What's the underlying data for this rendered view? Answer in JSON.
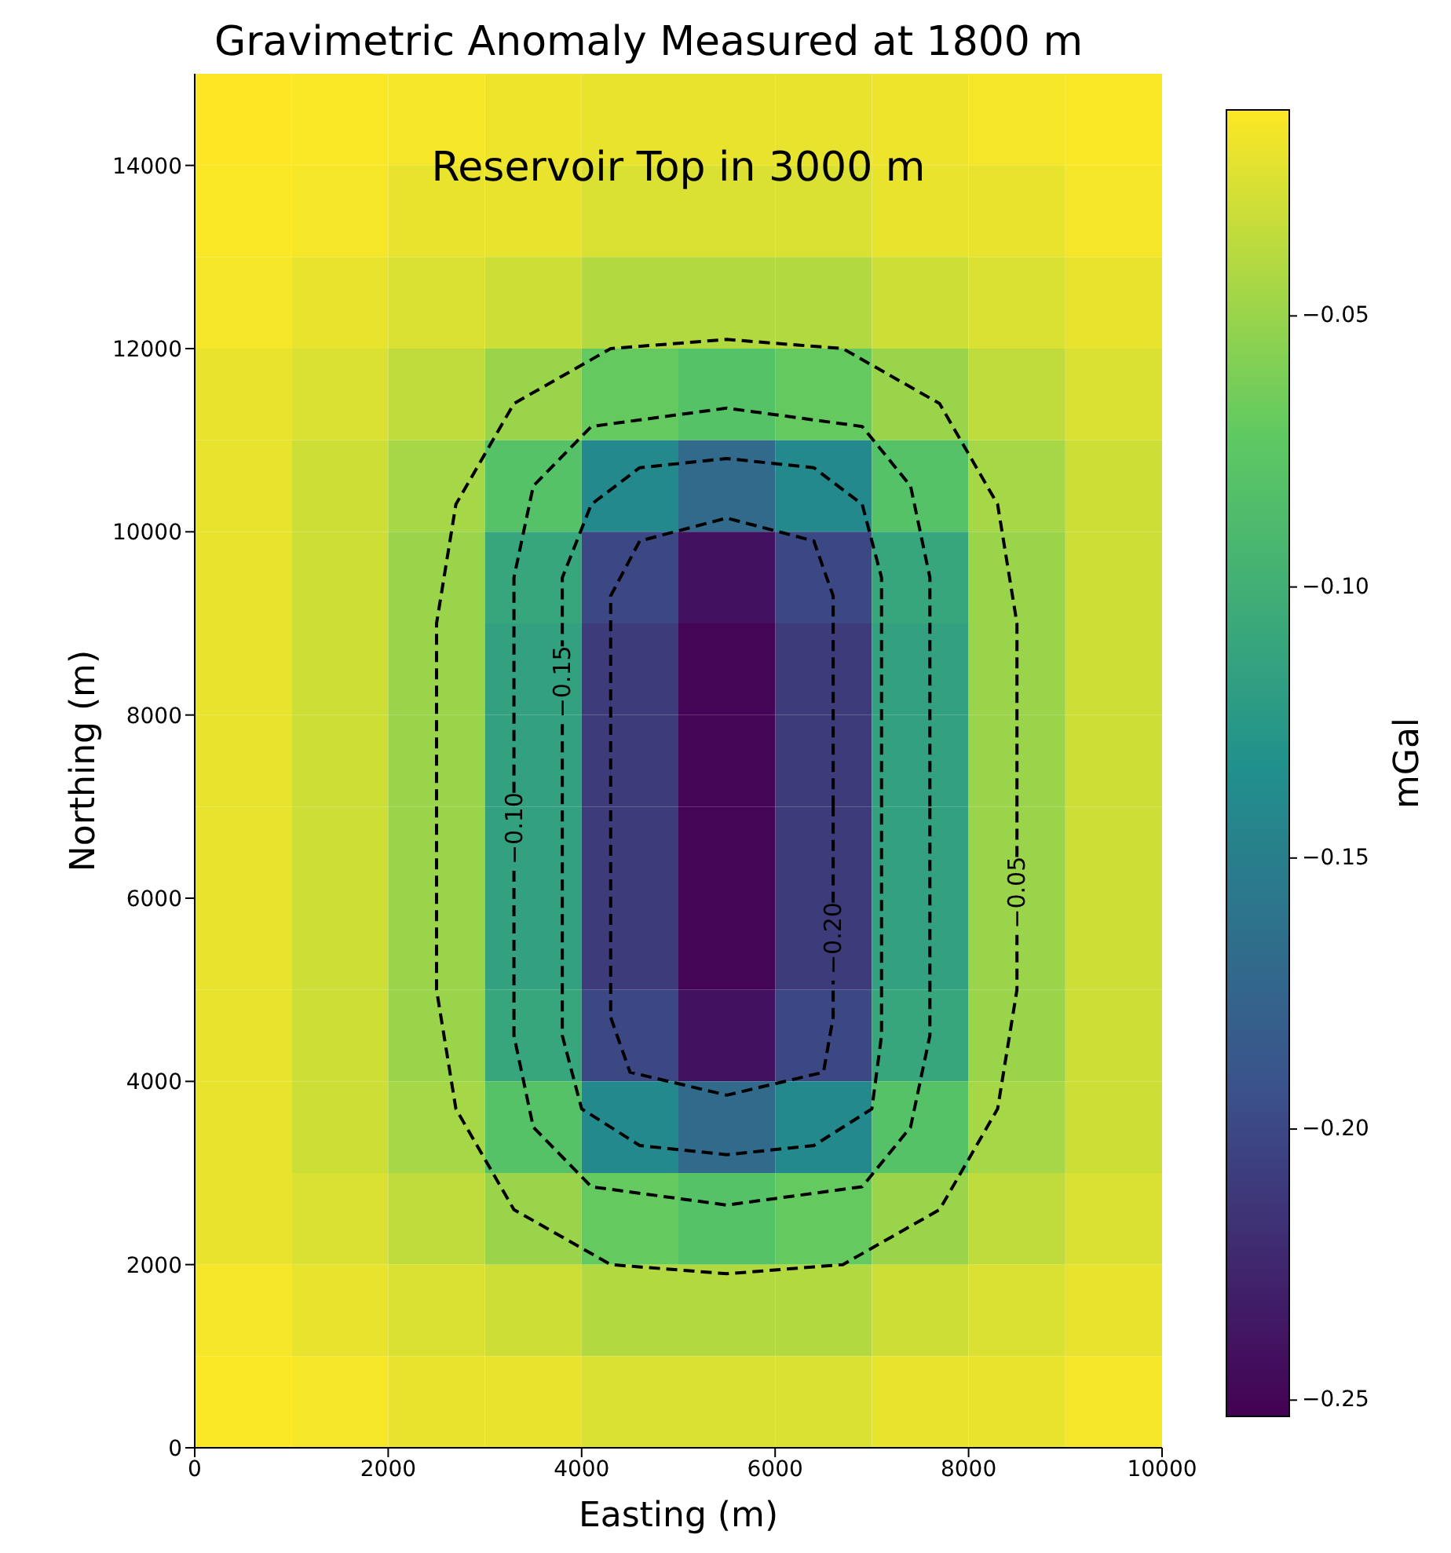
{
  "chart_data": {
    "type": "heatmap",
    "title": "Gravimetric Anomaly Measured at 1800 m",
    "xlabel": "Easting (m)",
    "ylabel": "Northing (m)",
    "clabel": "mGal",
    "annotations": [
      "Reservoir Top in 3000 m",
      {
        "text": "−0.05",
        "x": 8500,
        "y": 5600
      },
      {
        "text": "−0.10",
        "x": 3300,
        "y": 6300
      },
      {
        "text": "−0.15",
        "x": 3800,
        "y": 7900
      },
      {
        "text": "−0.20",
        "x": 6600,
        "y": 5100
      }
    ],
    "x": [
      500,
      1500,
      2500,
      3500,
      4500,
      5500,
      6500,
      7500,
      8500,
      9500
    ],
    "xlim": [
      0,
      10000
    ],
    "xticks": [
      0,
      2000,
      4000,
      6000,
      8000,
      10000
    ],
    "ylim": [
      0,
      15000
    ],
    "yticks": [
      0,
      2000,
      4000,
      6000,
      8000,
      10000,
      12000,
      14000
    ],
    "clim": [
      -0.253,
      -0.012
    ],
    "cticks": [
      {
        "value": -0.25,
        "label": "−0.25"
      },
      {
        "value": -0.2,
        "label": "−0.20"
      },
      {
        "value": -0.15,
        "label": "−0.15"
      },
      {
        "value": -0.1,
        "label": "−0.10"
      },
      {
        "value": -0.05,
        "label": "−0.05"
      }
    ],
    "cells": [
      [
        -0.012,
        -0.013,
        -0.015,
        -0.018,
        -0.02,
        -0.02,
        -0.02,
        -0.018,
        -0.015,
        -0.013
      ],
      [
        -0.013,
        -0.015,
        -0.02,
        -0.02,
        -0.025,
        -0.025,
        -0.025,
        -0.02,
        -0.02,
        -0.015
      ],
      [
        -0.015,
        -0.02,
        -0.025,
        -0.03,
        -0.04,
        -0.04,
        -0.04,
        -0.03,
        -0.025,
        -0.02
      ],
      [
        -0.02,
        -0.025,
        -0.035,
        -0.05,
        -0.07,
        -0.08,
        -0.07,
        -0.05,
        -0.035,
        -0.025
      ],
      [
        -0.02,
        -0.03,
        -0.045,
        -0.08,
        -0.14,
        -0.17,
        -0.14,
        -0.08,
        -0.045,
        -0.03
      ],
      [
        -0.02,
        -0.03,
        -0.05,
        -0.11,
        -0.2,
        -0.24,
        -0.2,
        -0.11,
        -0.05,
        -0.03
      ],
      [
        -0.02,
        -0.03,
        -0.05,
        -0.115,
        -0.21,
        -0.25,
        -0.21,
        -0.115,
        -0.05,
        -0.03
      ],
      [
        -0.02,
        -0.03,
        -0.05,
        -0.115,
        -0.21,
        -0.25,
        -0.21,
        -0.115,
        -0.05,
        -0.03
      ],
      [
        -0.02,
        -0.03,
        -0.05,
        -0.115,
        -0.21,
        -0.25,
        -0.21,
        -0.115,
        -0.05,
        -0.03
      ],
      [
        -0.02,
        -0.03,
        -0.05,
        -0.115,
        -0.21,
        -0.25,
        -0.21,
        -0.115,
        -0.05,
        -0.03
      ],
      [
        -0.02,
        -0.03,
        -0.05,
        -0.11,
        -0.2,
        -0.24,
        -0.2,
        -0.11,
        -0.05,
        -0.03
      ],
      [
        -0.02,
        -0.03,
        -0.045,
        -0.08,
        -0.14,
        -0.17,
        -0.14,
        -0.08,
        -0.045,
        -0.03
      ],
      [
        -0.02,
        -0.025,
        -0.035,
        -0.05,
        -0.07,
        -0.08,
        -0.07,
        -0.05,
        -0.035,
        -0.025
      ],
      [
        -0.015,
        -0.02,
        -0.025,
        -0.03,
        -0.04,
        -0.04,
        -0.04,
        -0.03,
        -0.025,
        -0.02
      ],
      [
        -0.013,
        -0.015,
        -0.02,
        -0.02,
        -0.025,
        -0.025,
        -0.025,
        -0.02,
        -0.02,
        -0.015
      ]
    ],
    "series": [
      {
        "type": "line",
        "color": "#000000",
        "line_style": "dashed",
        "x": [
          8500,
          8500,
          8300,
          7700,
          6700,
          5500,
          4300,
          3300,
          2700,
          2500,
          2500,
          2700,
          3300,
          4300,
          5500,
          6700,
          7700,
          8300,
          8500,
          8500,
          null,
          8500,
          8500
        ],
        "values": [
          7000,
          9000,
          10300,
          11400,
          12000,
          12100,
          12000,
          11400,
          10300,
          9000,
          5000,
          3700,
          2600,
          2000,
          1900,
          2000,
          2600,
          3700,
          5000,
          5600,
          null,
          6450,
          7000
        ]
      },
      {
        "type": "line",
        "color": "#000000",
        "line_style": "dashed",
        "x": [
          7600,
          7600,
          7400,
          6900,
          5500,
          4100,
          3500,
          3300,
          3300,
          null,
          3300,
          3300,
          3500,
          4100,
          5500,
          6900,
          7400,
          7600,
          7600
        ],
        "values": [
          7000,
          9500,
          10500,
          11150,
          11350,
          11150,
          10500,
          9500,
          7150,
          null,
          6300,
          4500,
          3500,
          2850,
          2650,
          2850,
          3500,
          4500,
          7000
        ]
      },
      {
        "type": "line",
        "color": "#000000",
        "line_style": "dashed",
        "x": [
          7100,
          7100,
          6900,
          6400,
          5500,
          4600,
          4100,
          3800,
          3800,
          null,
          3800,
          3800,
          4000,
          4600,
          5500,
          6400,
          7000,
          7100,
          7100
        ],
        "values": [
          7000,
          9500,
          10300,
          10700,
          10800,
          10700,
          10300,
          9500,
          8750,
          null,
          7900,
          4500,
          3700,
          3300,
          3200,
          3300,
          3700,
          4500,
          7000
        ]
      },
      {
        "type": "line",
        "color": "#000000",
        "line_style": "dashed",
        "x": [
          6600,
          6600,
          6400,
          5500,
          4600,
          4300,
          4300,
          4500,
          5500,
          6500,
          6600,
          6600,
          null,
          6600,
          6600
        ],
        "values": [
          7000,
          9300,
          9900,
          10150,
          9900,
          9300,
          4700,
          4100,
          3850,
          4100,
          4700,
          5100,
          null,
          5950,
          7000
        ]
      }
    ]
  }
}
